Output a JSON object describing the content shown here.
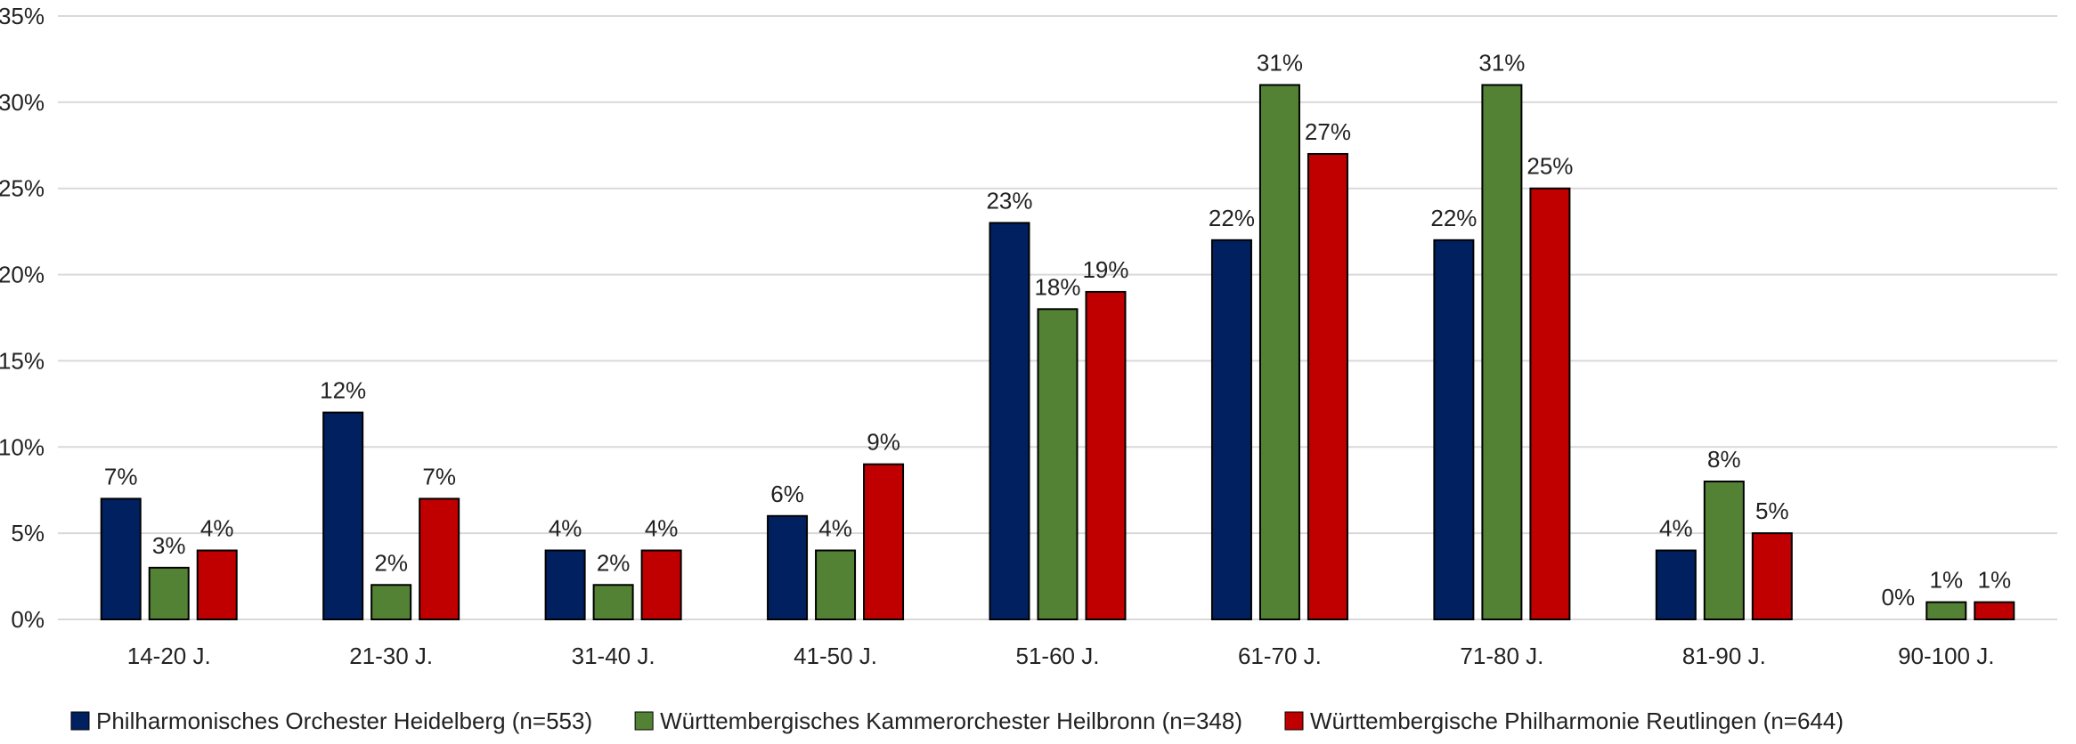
{
  "chart_data": {
    "type": "bar",
    "categories": [
      "14-20 J.",
      "21-30 J.",
      "31-40 J.",
      "41-50 J.",
      "51-60 J.",
      "61-70 J.",
      "71-80 J.",
      "81-90 J.",
      "90-100 J."
    ],
    "series": [
      {
        "name": "Philharmonisches Orchester Heidelberg (n=553)",
        "color": "#002060",
        "values": [
          7,
          12,
          4,
          6,
          23,
          22,
          22,
          4,
          0
        ]
      },
      {
        "name": "Württembergisches Kammerorchester Heilbronn (n=348)",
        "color": "#548235",
        "values": [
          3,
          2,
          2,
          4,
          18,
          31,
          31,
          8,
          1
        ]
      },
      {
        "name": "Württembergische Philharmonie Reutlingen (n=644)",
        "color": "#C00000",
        "values": [
          4,
          7,
          4,
          9,
          19,
          27,
          25,
          5,
          1
        ]
      }
    ],
    "y_ticks": [
      "0%",
      "5%",
      "10%",
      "15%",
      "20%",
      "25%",
      "30%",
      "35%"
    ],
    "ylim": [
      0,
      35
    ],
    "y_unit": "%",
    "grid": true,
    "legend_position": "bottom"
  }
}
